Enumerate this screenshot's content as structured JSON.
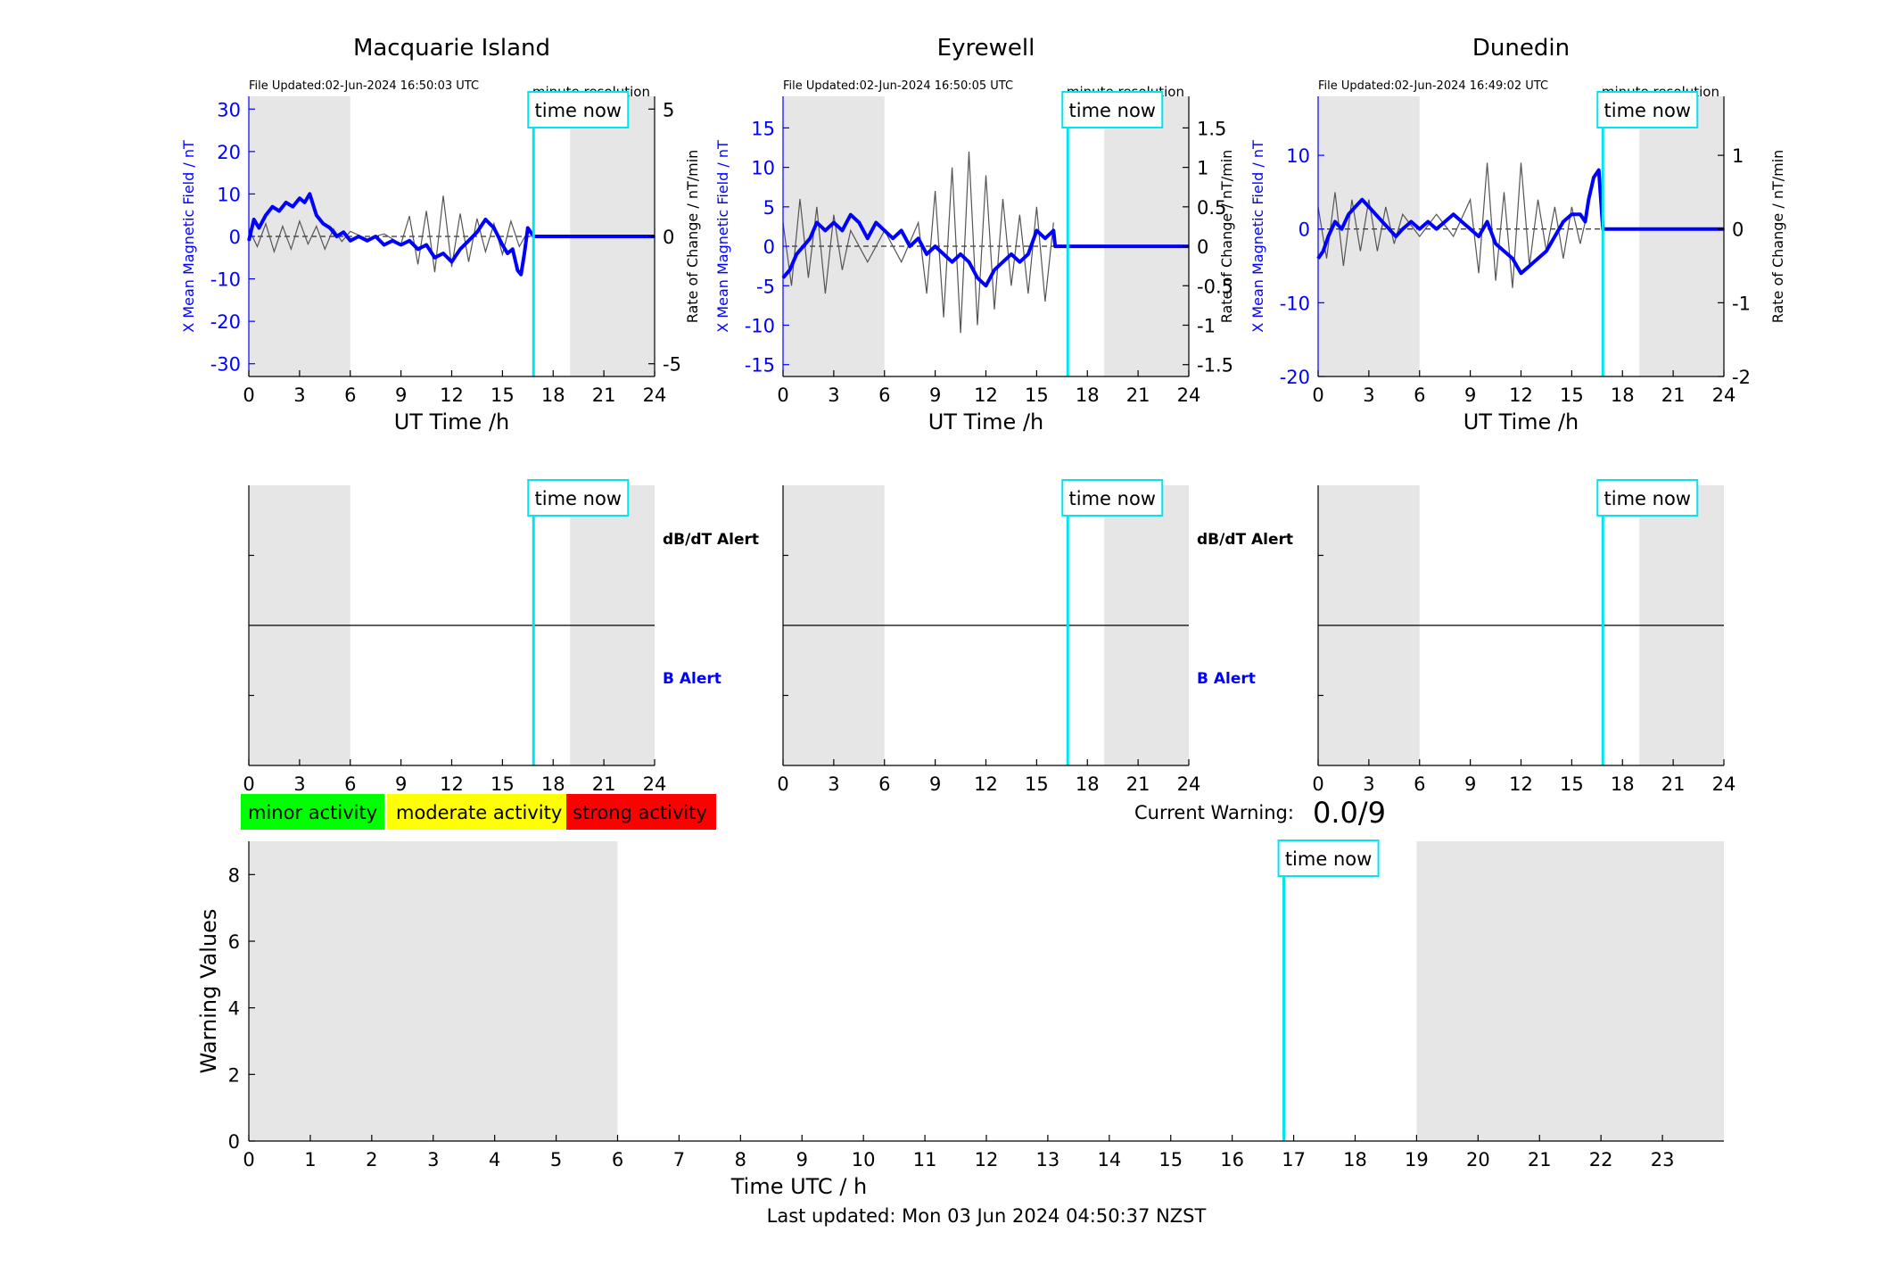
{
  "colors": {
    "b_series": "#0000ff",
    "rate_series": "#555555",
    "time_now": "#00e5ee",
    "night_shading": "#e6e6e6",
    "minor": "#00ff00",
    "moderate": "#ffff00",
    "strong": "#ff0000"
  },
  "time_now_label": "time now",
  "chart_data": [
    {
      "type": "line",
      "title": "Macquarie Island",
      "file_updated": "File Updated:02-Jun-2024 16:50:03 UTC",
      "resolution": "minute resolution",
      "xlabel": "UT Time /h",
      "ylabel_left": "X Mean Magnetic Field / nT",
      "ylabel_right": "Rate of Change / nT/min",
      "xlim": [
        0,
        24
      ],
      "xticks": [
        0,
        3,
        6,
        9,
        12,
        15,
        18,
        21,
        24
      ],
      "ylim_left": [
        -33,
        33
      ],
      "yticks_left": [
        -30,
        -20,
        -10,
        0,
        10,
        20,
        30
      ],
      "ylim_right": [
        -5.5,
        5.5
      ],
      "yticks_right": [
        -5,
        0,
        5
      ],
      "shaded_intervals": [
        [
          0,
          6
        ],
        [
          19,
          24
        ]
      ],
      "time_now": 16.84,
      "series": [
        {
          "name": "X Mean Magnetic Field",
          "x": [
            0,
            0.3,
            0.6,
            1,
            1.4,
            1.8,
            2.2,
            2.6,
            3,
            3.3,
            3.6,
            4,
            4.4,
            4.8,
            5.2,
            5.6,
            6,
            6.5,
            7,
            7.5,
            8,
            8.5,
            9,
            9.5,
            10,
            10.5,
            11,
            11.5,
            12,
            12.5,
            13,
            13.5,
            14,
            14.5,
            15,
            15.3,
            15.6,
            15.9,
            16.1,
            16.3,
            16.5,
            16.84,
            24
          ],
          "y": [
            -1,
            4,
            2,
            5,
            7,
            6,
            8,
            7,
            9,
            8,
            10,
            5,
            3,
            2,
            0,
            1,
            -1,
            0,
            -1,
            0,
            -2,
            -1,
            -2,
            -1,
            -3,
            -2,
            -5,
            -4,
            -6,
            -3,
            -1,
            1,
            4,
            2,
            -2,
            -4,
            -3,
            -8,
            -9,
            -4,
            2,
            0,
            0
          ]
        },
        {
          "name": "Rate of Change",
          "x": [
            0,
            0.5,
            1,
            1.5,
            2,
            2.5,
            3,
            3.5,
            4,
            4.5,
            5,
            5.5,
            6,
            7,
            8,
            9,
            9.5,
            10,
            10.5,
            11,
            11.5,
            12,
            12.5,
            13,
            13.5,
            14,
            14.5,
            15,
            15.5,
            16,
            16.5
          ],
          "y": [
            0.3,
            -0.4,
            0.5,
            -0.6,
            0.4,
            -0.5,
            0.6,
            -0.3,
            0.4,
            -0.5,
            0.3,
            -0.2,
            0.2,
            -0.1,
            0.1,
            -0.3,
            0.8,
            -1.1,
            1.0,
            -1.4,
            1.6,
            -1.2,
            0.9,
            -1.0,
            0.7,
            -0.6,
            0.5,
            -0.7,
            0.6,
            -0.4,
            0.2
          ]
        }
      ],
      "alert_labels": [
        "dB/dT Alert",
        "B Alert"
      ]
    },
    {
      "type": "line",
      "title": "Eyrewell",
      "file_updated": "File Updated:02-Jun-2024 16:50:05 UTC",
      "resolution": "minute resolution",
      "xlabel": "UT Time /h",
      "ylabel_left": "X Mean Magnetic Field / nT",
      "ylabel_right": "Rate of Change / nT/min",
      "xlim": [
        0,
        24
      ],
      "xticks": [
        0,
        3,
        6,
        9,
        12,
        15,
        18,
        21,
        24
      ],
      "ylim_left": [
        -16.5,
        19
      ],
      "yticks_left": [
        -15,
        -10,
        -5,
        0,
        5,
        10,
        15
      ],
      "ylim_right": [
        -1.65,
        1.9
      ],
      "yticks_right": [
        -1.5,
        -1,
        -0.5,
        0,
        0.5,
        1,
        1.5
      ],
      "shaded_intervals": [
        [
          0,
          6
        ],
        [
          19,
          24
        ]
      ],
      "time_now": 16.84,
      "series": [
        {
          "name": "X Mean Magnetic Field",
          "x": [
            0,
            0.4,
            0.8,
            1.2,
            1.6,
            2,
            2.5,
            3,
            3.5,
            4,
            4.5,
            5,
            5.5,
            6,
            6.5,
            7,
            7.5,
            8,
            8.5,
            9,
            9.5,
            10,
            10.5,
            11,
            11.5,
            12,
            12.5,
            13,
            13.5,
            14,
            14.5,
            15,
            15.5,
            16,
            16.1,
            16.84,
            24
          ],
          "y": [
            -4,
            -3,
            -1,
            0,
            1,
            3,
            2,
            3,
            2,
            4,
            3,
            1,
            3,
            2,
            1,
            2,
            0,
            1,
            -1,
            0,
            -1,
            -2,
            -1,
            -2,
            -4,
            -5,
            -3,
            -2,
            -1,
            -2,
            -1,
            2,
            1,
            2,
            0,
            0,
            0
          ]
        },
        {
          "name": "Rate of Change",
          "x": [
            0,
            0.5,
            1,
            1.5,
            2,
            2.5,
            3,
            3.5,
            4,
            5,
            6,
            7,
            8,
            8.5,
            9,
            9.5,
            10,
            10.5,
            11,
            11.5,
            12,
            12.5,
            13,
            13.5,
            14,
            14.5,
            15,
            15.5,
            16
          ],
          "y": [
            0.3,
            -0.5,
            0.6,
            -0.4,
            0.5,
            -0.6,
            0.4,
            -0.3,
            0.2,
            -0.2,
            0.2,
            -0.2,
            0.3,
            -0.6,
            0.7,
            -0.9,
            1.0,
            -1.1,
            1.2,
            -1.0,
            0.9,
            -0.8,
            0.6,
            -0.5,
            0.4,
            -0.6,
            0.5,
            -0.7,
            0.3
          ]
        }
      ],
      "alert_labels": [
        "dB/dT Alert",
        "B Alert"
      ]
    },
    {
      "type": "line",
      "title": "Dunedin",
      "file_updated": "File Updated:02-Jun-2024 16:49:02 UTC",
      "resolution": "minute resolution",
      "xlabel": "UT Time /h",
      "ylabel_left": "X Mean Magnetic Field / nT",
      "ylabel_right": "Rate of Change / nT/min",
      "xlim": [
        0,
        24
      ],
      "xticks": [
        0,
        3,
        6,
        9,
        12,
        15,
        18,
        21,
        24
      ],
      "ylim_left": [
        -20,
        18
      ],
      "yticks_left": [
        -20,
        -10,
        0,
        10
      ],
      "ylim_right": [
        -2,
        1.8
      ],
      "yticks_right": [
        -2,
        -1,
        0,
        1
      ],
      "shaded_intervals": [
        [
          0,
          6
        ],
        [
          19,
          24
        ]
      ],
      "time_now": 16.84,
      "series": [
        {
          "name": "X Mean Magnetic Field",
          "x": [
            0,
            0.3,
            0.6,
            1,
            1.4,
            1.8,
            2.2,
            2.6,
            3,
            3.4,
            3.8,
            4.2,
            4.6,
            5,
            5.5,
            6,
            6.5,
            7,
            7.5,
            8,
            8.5,
            9,
            9.5,
            10,
            10.5,
            11,
            11.5,
            12,
            12.5,
            13,
            13.5,
            14,
            14.5,
            15,
            15.5,
            15.8,
            16,
            16.3,
            16.6,
            16.84,
            24
          ],
          "y": [
            -4,
            -3,
            -1,
            1,
            0,
            2,
            3,
            4,
            3,
            2,
            1,
            0,
            -1,
            0,
            1,
            0,
            1,
            0,
            1,
            2,
            1,
            0,
            -1,
            1,
            -2,
            -3,
            -4,
            -6,
            -5,
            -4,
            -3,
            -1,
            1,
            2,
            2,
            1,
            4,
            7,
            8,
            0,
            0
          ]
        },
        {
          "name": "Rate of Change",
          "x": [
            0,
            0.5,
            1,
            1.5,
            2,
            2.5,
            3,
            3.5,
            4,
            4.5,
            5,
            6,
            7,
            8,
            9,
            9.5,
            10,
            10.5,
            11,
            11.5,
            12,
            12.5,
            13,
            13.5,
            14,
            14.5,
            15,
            15.5,
            16
          ],
          "y": [
            0.3,
            -0.4,
            0.5,
            -0.5,
            0.4,
            -0.3,
            0.4,
            -0.3,
            0.3,
            -0.2,
            0.2,
            -0.1,
            0.2,
            -0.1,
            0.4,
            -0.6,
            0.9,
            -0.7,
            0.5,
            -0.8,
            0.9,
            -0.5,
            0.4,
            -0.3,
            0.3,
            -0.4,
            0.3,
            -0.2,
            0.3
          ]
        }
      ],
      "alert_labels": []
    },
    {
      "type": "line",
      "title": "",
      "xlabel": "Time UTC / h",
      "ylabel": "Warning Values",
      "xlim": [
        0,
        24
      ],
      "xticks": [
        0,
        1,
        2,
        3,
        4,
        5,
        6,
        7,
        8,
        9,
        10,
        11,
        12,
        13,
        14,
        15,
        16,
        17,
        18,
        19,
        20,
        21,
        22,
        23
      ],
      "ylim": [
        0,
        9
      ],
      "yticks": [
        0,
        2,
        4,
        6,
        8
      ],
      "shaded_intervals": [
        [
          0,
          6
        ],
        [
          19,
          24
        ]
      ],
      "time_now": 16.84
    }
  ],
  "legend": {
    "minor": "minor activity",
    "moderate": "moderate activity",
    "strong": "strong activity"
  },
  "warning": {
    "label": "Current Warning:",
    "value": "0.0/9"
  },
  "footer": {
    "last_updated": "Last updated: Mon 03 Jun 2024 04:50:37 NZST"
  }
}
